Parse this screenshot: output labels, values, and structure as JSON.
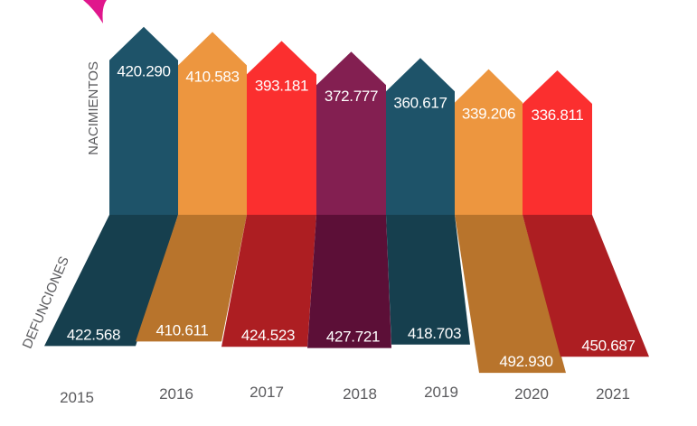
{
  "chart_data": {
    "type": "bar",
    "title": "",
    "xlabel": "",
    "ylabel": "",
    "categories": [
      "2015",
      "2016",
      "2017",
      "2018",
      "2019",
      "2020",
      "2021"
    ],
    "series": [
      {
        "name": "NACIMIENTOS",
        "values": [
          420290,
          410583,
          393181,
          372777,
          360617,
          339206,
          336811
        ],
        "labels": [
          "420.290",
          "410.583",
          "393.181",
          "372.777",
          "360.617",
          "339.206",
          "336.811"
        ],
        "colors": [
          "#1e5369",
          "#ed963f",
          "#fb2f2f",
          "#831f51",
          "#1e5369",
          "#ed963f",
          "#fb2f2f"
        ]
      },
      {
        "name": "DEFUNCIONES",
        "values": [
          422568,
          410611,
          424523,
          427721,
          418703,
          492930,
          450687
        ],
        "labels": [
          "422.568",
          "410.611",
          "424.523",
          "427.721",
          "418.703",
          "492.930",
          "450.687"
        ],
        "colors": [
          "#163f4e",
          "#b8742c",
          "#ad1e22",
          "#5c0f37",
          "#163f4e",
          "#b8742c",
          "#ad1e22"
        ]
      }
    ],
    "axis_labels": {
      "top": "NACIMIENTOS",
      "bottom": "DEFUNCIONES"
    },
    "grid": false,
    "legend": "none"
  },
  "decoration": {
    "accent_color": "#e0168c"
  }
}
